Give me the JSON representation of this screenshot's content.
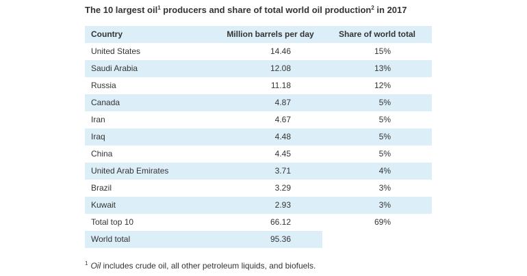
{
  "title": {
    "part1": "The 10 largest oil",
    "sup1": "1",
    "part2": " producers and share of total world oil production",
    "sup2": "2",
    "part3": " in 2017"
  },
  "table": {
    "headers": [
      "Country",
      "Million barrels per day",
      "Share of world total"
    ],
    "rows": [
      {
        "country": "United States",
        "barrels": "14.46",
        "share": "15%"
      },
      {
        "country": "Saudi Arabia",
        "barrels": "12.08",
        "share": "13%"
      },
      {
        "country": "Russia",
        "barrels": "11.18",
        "share": "12%"
      },
      {
        "country": "Canada",
        "barrels": "4.87",
        "share": "5%"
      },
      {
        "country": "Iran",
        "barrels": "4.67",
        "share": "5%"
      },
      {
        "country": "Iraq",
        "barrels": "4.48",
        "share": "5%"
      },
      {
        "country": "China",
        "barrels": "4.45",
        "share": "5%"
      },
      {
        "country": "United Arab Emirates",
        "barrels": "3.71",
        "share": "4%"
      },
      {
        "country": "Brazil",
        "barrels": "3.29",
        "share": "3%"
      },
      {
        "country": "Kuwait",
        "barrels": "2.93",
        "share": "3%"
      },
      {
        "country": "Total top 10",
        "barrels": "66.12",
        "share": "69%"
      },
      {
        "country": "World total",
        "barrels": "95.36",
        "share": ""
      }
    ]
  },
  "footnote": {
    "sup": "1",
    "italic": "Oil",
    "rest": " includes crude oil, all other petroleum liquids, and biofuels."
  },
  "colors": {
    "row_shade": "#dceef8",
    "text": "#333333"
  }
}
